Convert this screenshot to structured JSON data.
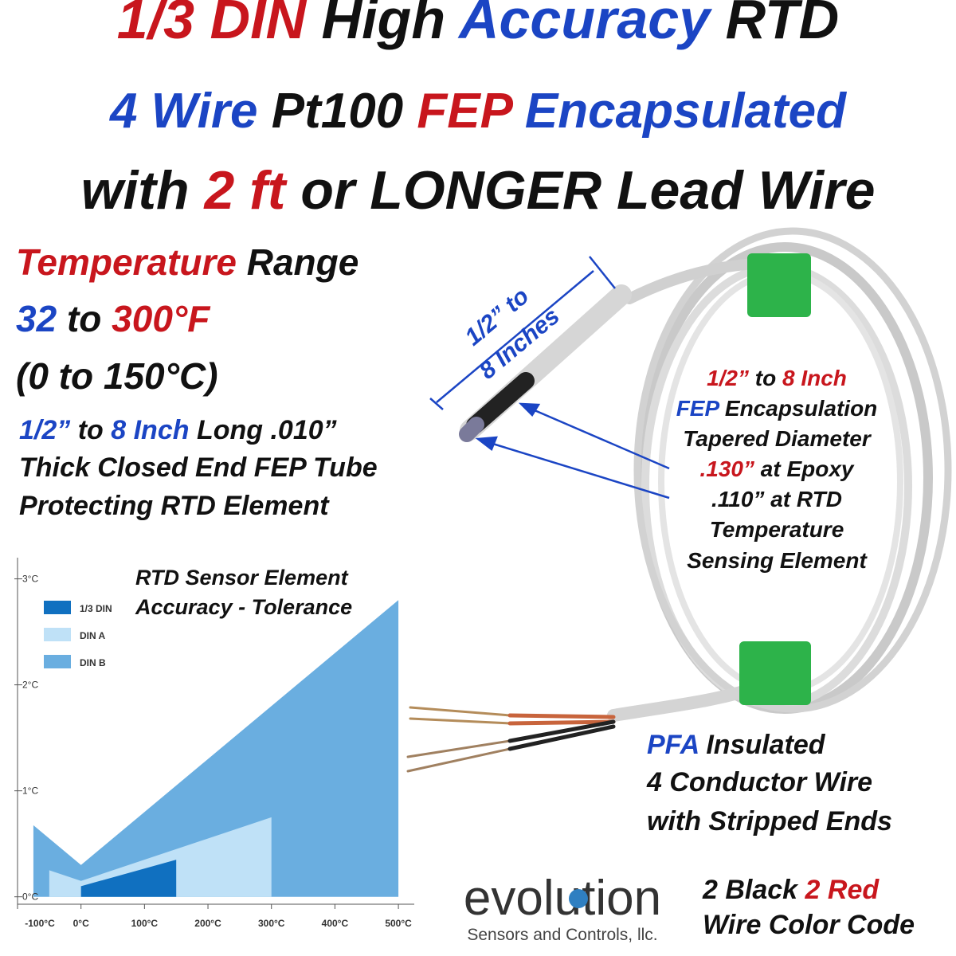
{
  "headline": [
    [
      {
        "text": "1/3 DIN",
        "color": "#c8161d"
      },
      {
        "text": " High ",
        "color": "#111111"
      },
      {
        "text": "Accuracy",
        "color": "#1b45c4"
      },
      {
        "text": " RTD",
        "color": "#111111"
      }
    ],
    [
      {
        "text": "4 Wire",
        "color": "#1b45c4"
      },
      {
        "text": " Pt100 ",
        "color": "#111111"
      },
      {
        "text": "FEP",
        "color": "#c8161d"
      },
      {
        "text": " Encapsulated",
        "color": "#1b45c4"
      }
    ],
    [
      {
        "text": "with ",
        "color": "#111111"
      },
      {
        "text": "2 ft",
        "color": "#c8161d"
      },
      {
        "text": " or LONGER Lead Wire",
        "color": "#111111"
      }
    ]
  ],
  "temperature_range": [
    [
      {
        "text": "Temperature",
        "color": "#c8161d"
      },
      {
        "text": " Range",
        "color": "#111111"
      }
    ],
    [
      {
        "text": "32",
        "color": "#1b45c4"
      },
      {
        "text": " to ",
        "color": "#111111"
      },
      {
        "text": "300°F",
        "color": "#c8161d"
      }
    ],
    [
      {
        "text": "(0 to 150°C)",
        "color": "#111111"
      }
    ]
  ],
  "tube_description": [
    [
      {
        "text": "1/2”",
        "color": "#1b45c4"
      },
      {
        "text": " to ",
        "color": "#111111"
      },
      {
        "text": "8 Inch",
        "color": "#1b45c4"
      },
      {
        "text": " Long .010”",
        "color": "#111111"
      }
    ],
    [
      {
        "text": "Thick Closed End FEP Tube",
        "color": "#111111"
      }
    ],
    [
      {
        "text": "Protecting RTD Element",
        "color": "#111111"
      }
    ]
  ],
  "encapsulation_note": [
    [
      {
        "text": "1/2”",
        "color": "#c8161d"
      },
      {
        "text": " to ",
        "color": "#111111"
      },
      {
        "text": "8 Inch",
        "color": "#c8161d"
      }
    ],
    [
      {
        "text": "FEP",
        "color": "#1b45c4"
      },
      {
        "text": " Encapsulation",
        "color": "#111111"
      }
    ],
    [
      {
        "text": "Tapered Diameter",
        "color": "#111111"
      }
    ],
    [
      {
        "text": ".130”",
        "color": "#c8161d"
      },
      {
        "text": " at Epoxy",
        "color": "#111111"
      }
    ],
    [
      {
        "text": ".110” at RTD",
        "color": "#111111"
      }
    ],
    [
      {
        "text": "Temperature",
        "color": "#111111"
      }
    ],
    [
      {
        "text": "Sensing Element",
        "color": "#111111"
      }
    ]
  ],
  "length_dimension": [
    [
      {
        "text": "1/2” to",
        "color": "#1b45c4"
      }
    ],
    [
      {
        "text": "8 Inches",
        "color": "#1b45c4"
      }
    ]
  ],
  "wire_note": [
    [
      {
        "text": "PFA",
        "color": "#1b45c4"
      },
      {
        "text": " Insulated",
        "color": "#111111"
      }
    ],
    [
      {
        "text": "4 Conductor Wire",
        "color": "#111111"
      }
    ],
    [
      {
        "text": "with Stripped Ends",
        "color": "#111111"
      }
    ]
  ],
  "color_code": [
    [
      {
        "text": "2 Black ",
        "color": "#111111"
      },
      {
        "text": "2 Red",
        "color": "#c8161d"
      }
    ],
    [
      {
        "text": "Wire Color Code",
        "color": "#111111"
      }
    ]
  ],
  "logo": {
    "name": "evolution",
    "tagline": "Sensors and Controls, llc."
  },
  "chart_data": {
    "type": "area",
    "title": [
      "RTD Sensor Element",
      "Accuracy - Tolerance"
    ],
    "series": [
      {
        "name": "DIN B",
        "color": "#6aaee0",
        "x": [
          -75,
          0,
          500
        ],
        "values": [
          0.675,
          0.3,
          2.8
        ]
      },
      {
        "name": "DIN A",
        "color": "#bfe1f7",
        "x": [
          -50,
          0,
          300
        ],
        "values": [
          0.25,
          0.15,
          0.75
        ]
      },
      {
        "name": "1/3 DIN",
        "color": "#1070c0",
        "x": [
          0,
          150
        ],
        "values": [
          0.1,
          0.35
        ]
      }
    ],
    "xlim": [
      -100,
      525
    ],
    "ylim": [
      -0.07,
      3.2
    ],
    "xticks": [
      {
        "value": -100,
        "label": "-100°C"
      },
      {
        "value": 0,
        "label": "0°C"
      },
      {
        "value": 100,
        "label": "100°C"
      },
      {
        "value": 200,
        "label": "200°C"
      },
      {
        "value": 300,
        "label": "300°C"
      },
      {
        "value": 400,
        "label": "400°C"
      },
      {
        "value": 500,
        "label": "500°C"
      }
    ],
    "yticks": [
      {
        "value": 0,
        "label": "0°C"
      },
      {
        "value": 1,
        "label": "1°C"
      },
      {
        "value": 2,
        "label": "2°C"
      },
      {
        "value": 3,
        "label": "3°C"
      }
    ]
  }
}
